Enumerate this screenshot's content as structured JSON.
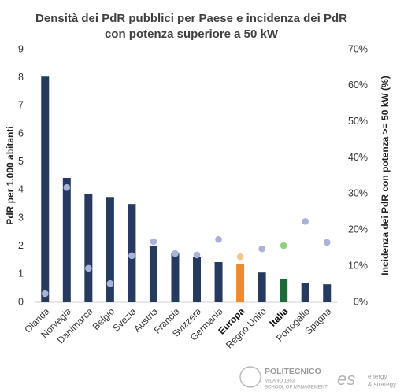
{
  "chart_data": {
    "type": "bar_dot",
    "title": [
      "Densità dei PdR pubblici per Paese e incidenza dei PdR",
      "con potenza superiore a 50 kW"
    ],
    "ylabel": "PdR per 1.000 abitanti",
    "y2label": "Incidenza dei PdR con potenza >= 50 kW (%)",
    "categories": [
      "Olanda",
      "Norvegia",
      "Danimarca",
      "Belgio",
      "Svezia",
      "Austria",
      "Francia",
      "Svizzera",
      "Germania",
      "Europa",
      "Regno Unito",
      "Italia",
      "Portogallo",
      "Spagna"
    ],
    "series": [
      {
        "type": "bar",
        "color": "#253a5e",
        "colors": [
          "#253a5e",
          "#253a5e",
          "#253a5e",
          "#253a5e",
          "#253a5e",
          "#253a5e",
          "#253a5e",
          "#253a5e",
          "#253a5e",
          "#ef8a2f",
          "#253a5e",
          "#1e6a3a",
          "#253a5e",
          "#253a5e"
        ],
        "values": [
          8.04,
          4.43,
          3.87,
          3.75,
          3.5,
          2.02,
          1.74,
          1.6,
          1.43,
          1.37,
          1.06,
          0.84,
          0.7,
          0.64
        ]
      },
      {
        "type": "dot",
        "axis": "y2",
        "color": "#a9b3d9",
        "colors": [
          "#a9b3d9",
          "#a9b3d9",
          "#a9b3d9",
          "#a9b3d9",
          "#a9b3d9",
          "#a9b3d9",
          "#a9b3d9",
          "#a9b3d9",
          "#a9b3d9",
          "#f8c592",
          "#a9b3d9",
          "#8fd17a",
          "#a9b3d9",
          "#a9b3d9"
        ],
        "values": [
          2.4,
          31.8,
          9.4,
          5.2,
          12.9,
          16.8,
          13.5,
          13.1,
          17.4,
          12.6,
          14.8,
          15.7,
          22.4,
          16.6
        ]
      }
    ],
    "ylim": [
      0,
      9
    ],
    "yticks": [
      0,
      1,
      2,
      3,
      4,
      5,
      6,
      7,
      8,
      9
    ],
    "y2lim": [
      0,
      70
    ],
    "y2ticks": [
      {
        "value": 0,
        "label": "0%"
      },
      {
        "value": 10,
        "label": "10%"
      },
      {
        "value": 20,
        "label": "20%"
      },
      {
        "value": 30,
        "label": "30%"
      },
      {
        "value": 40,
        "label": "40%"
      },
      {
        "value": 50,
        "label": "50%"
      },
      {
        "value": 60,
        "label": "60%"
      },
      {
        "value": 70,
        "label": "70%"
      }
    ],
    "grid": false
  },
  "footer": {
    "logo1": [
      "POLITECNICO",
      "MILANO 1863",
      "SCHOOL OF MANAGEMENT"
    ],
    "logo2_mark": "es",
    "logo2": [
      "energy",
      "& strategy"
    ]
  }
}
